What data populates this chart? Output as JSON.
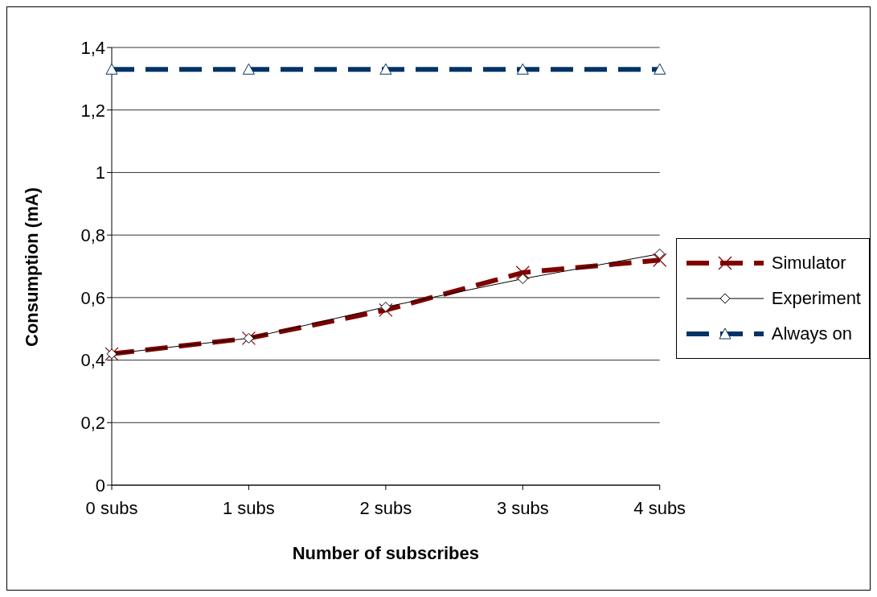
{
  "chart_data": {
    "type": "line",
    "xlabel": "Number of subscribes",
    "ylabel": "Consumption (mA)",
    "categories": [
      "0 subs",
      "1 subs",
      "2 subs",
      "3 subs",
      "4 subs"
    ],
    "series": [
      {
        "name": "Simulator",
        "color": "#800000",
        "values": [
          0.42,
          0.47,
          0.56,
          0.68,
          0.72
        ],
        "marker": "cross",
        "line_style": "dashed"
      },
      {
        "name": "Experiment",
        "color": "#000000",
        "values": [
          0.42,
          0.47,
          0.57,
          0.66,
          0.74
        ],
        "marker": "diamond",
        "line_style": "solid"
      },
      {
        "name": "Always on",
        "color": "#003366",
        "values": [
          1.33,
          1.33,
          1.33,
          1.33,
          1.33
        ],
        "marker": "triangle",
        "line_style": "dashed"
      }
    ],
    "ylim": [
      0,
      1.4
    ],
    "yticks": [
      0,
      {
        "value": 0.2,
        "label": "0,2"
      },
      {
        "value": 0.4,
        "label": "0,4"
      },
      {
        "value": 0.6,
        "label": "0,6"
      },
      {
        "value": 0.8,
        "label": "0,8"
      },
      1,
      {
        "value": 1.2,
        "label": "1,2"
      },
      {
        "value": 1.4,
        "label": "1,4"
      }
    ],
    "grid": "y",
    "legend": "right"
  }
}
